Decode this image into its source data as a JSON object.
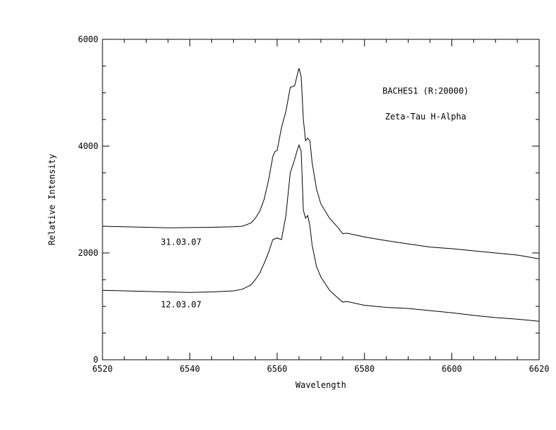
{
  "chart_data": {
    "type": "line",
    "xlabel": "Wavelength",
    "ylabel": "Relative Intensity",
    "xlim": [
      6520,
      6620
    ],
    "ylim": [
      0,
      6000
    ],
    "xticks": [
      6520,
      6540,
      6560,
      6580,
      6600,
      6620
    ],
    "yticks": [
      0,
      2000,
      4000,
      6000
    ],
    "grid": false,
    "annotations": [
      {
        "text": "BACHES1 (R:20000)",
        "x": 6594,
        "y": 4980
      },
      {
        "text": "Zeta-Tau H-Alpha",
        "x": 6594,
        "y": 4500
      }
    ],
    "series": [
      {
        "name": "31.03.07",
        "label_at": {
          "x": 6538,
          "y": 2150
        },
        "x": [
          6520,
          6525,
          6530,
          6535,
          6540,
          6545,
          6550,
          6552,
          6554,
          6555,
          6556,
          6557,
          6558,
          6559,
          6559.5,
          6560,
          6561,
          6562,
          6563,
          6564,
          6564.5,
          6565,
          6565.5,
          6566,
          6566.5,
          6567,
          6567.5,
          6568,
          6569,
          6570,
          6572,
          6574,
          6575,
          6576,
          6580,
          6585,
          6590,
          6595,
          6600,
          6605,
          6610,
          6615,
          6620
        ],
        "y": [
          2500,
          2490,
          2480,
          2470,
          2475,
          2480,
          2490,
          2500,
          2560,
          2650,
          2780,
          3000,
          3350,
          3800,
          3900,
          3920,
          4350,
          4650,
          5100,
          5130,
          5300,
          5460,
          5300,
          4500,
          4100,
          4150,
          4100,
          3700,
          3200,
          2920,
          2650,
          2470,
          2360,
          2370,
          2300,
          2230,
          2170,
          2110,
          2080,
          2040,
          2000,
          1960,
          1890
        ]
      },
      {
        "name": "12.03.07",
        "label_at": {
          "x": 6538,
          "y": 980
        },
        "x": [
          6520,
          6525,
          6530,
          6535,
          6540,
          6545,
          6550,
          6552,
          6554,
          6555,
          6556,
          6557,
          6558,
          6559,
          6560,
          6561,
          6562,
          6563,
          6564,
          6564.5,
          6565,
          6565.5,
          6566,
          6566.5,
          6567,
          6567.5,
          6568,
          6569,
          6570,
          6572,
          6574,
          6575,
          6576,
          6580,
          6585,
          6590,
          6595,
          6600,
          6605,
          6610,
          6615,
          6620
        ],
        "y": [
          1300,
          1290,
          1280,
          1270,
          1260,
          1270,
          1290,
          1320,
          1400,
          1500,
          1620,
          1800,
          2000,
          2250,
          2280,
          2250,
          2700,
          3500,
          3750,
          3900,
          4020,
          3900,
          2800,
          2650,
          2700,
          2500,
          2150,
          1750,
          1550,
          1300,
          1150,
          1080,
          1090,
          1020,
          980,
          960,
          920,
          880,
          830,
          790,
          760,
          720
        ]
      }
    ]
  }
}
